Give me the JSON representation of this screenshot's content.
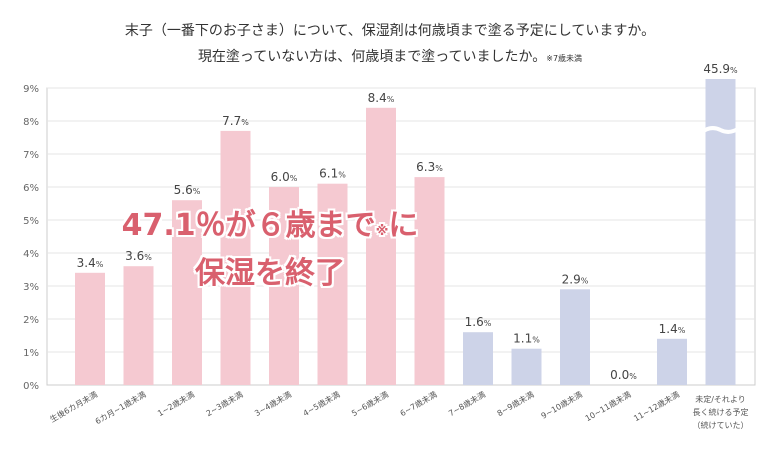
{
  "chart_data": {
    "type": "bar",
    "title": "末子（一番下のお子さま）について、保湿剤は何歳頃まで塗る予定にしていますか。",
    "subtitle": "現在塗っていない方は、何歳頃まで塗っていましたか。",
    "subtitle_note": "※7歳未満",
    "categories": [
      "生後6カ月未満",
      "6カ月~1歳未満",
      "1~2歳未満",
      "2~3歳未満",
      "3~4歳未満",
      "4~5歳未満",
      "5~6歳未満",
      "6~7歳未満",
      "7~8歳未満",
      "8~9歳未満",
      "9~10歳未満",
      "10~11歳未満",
      "11~12歳未満",
      "未定/それより長く続ける予定（続けていた）"
    ],
    "values": [
      3.4,
      3.6,
      5.6,
      7.7,
      6.0,
      6.1,
      8.4,
      6.3,
      1.6,
      1.1,
      2.9,
      0.0,
      1.4,
      45.9
    ],
    "data_labels": [
      "3.4%",
      "3.6%",
      "5.6%",
      "7.7%",
      "6.0%",
      "6.1%",
      "8.4%",
      "6.3%",
      "1.6%",
      "1.1%",
      "2.9%",
      "0.0%",
      "1.4%",
      "45.9%"
    ],
    "last_category_lines": [
      "未定/それより",
      "長く続ける予定",
      "（続けていた）"
    ],
    "y_ticks": [
      "0%",
      "1%",
      "2%",
      "3%",
      "4%",
      "5%",
      "6%",
      "7%",
      "8%",
      "9%"
    ],
    "ylim": [
      0,
      9
    ],
    "axis_break_on_last_bar": true,
    "grid": true,
    "colors": {
      "pink": "#f5c9d1",
      "blue": "#cdd3e8",
      "pink_count": 8
    },
    "xlabel": "",
    "ylabel": ""
  },
  "annotation": {
    "line1_main": "47.1％が６歳まで",
    "line1_note": "※",
    "line1_end": "に",
    "line2": "保湿を終了",
    "color": "#d9606e"
  }
}
